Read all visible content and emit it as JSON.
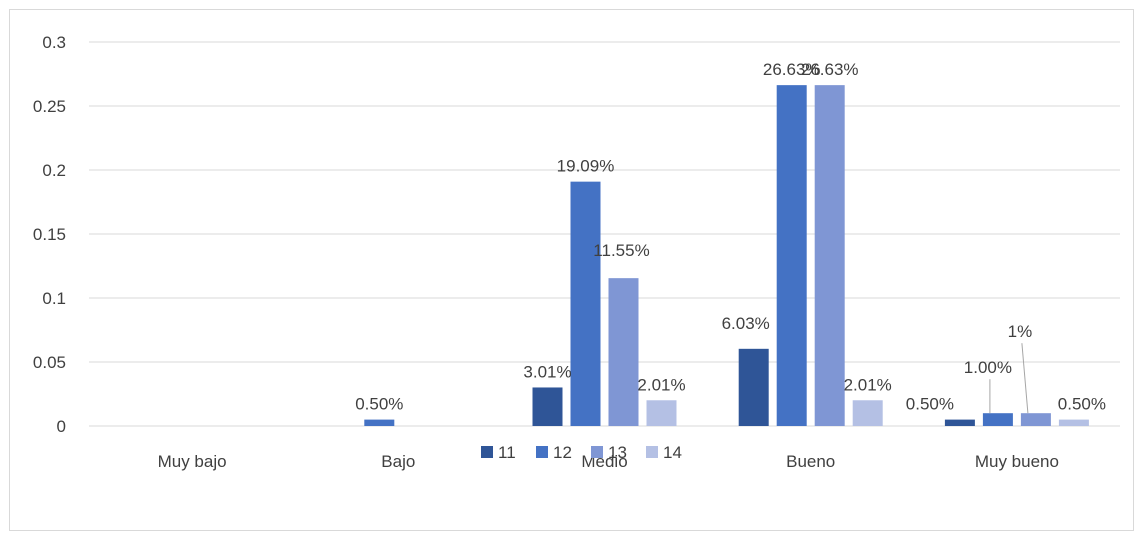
{
  "chart_data": {
    "type": "bar",
    "categories": [
      "Muy bajo",
      "Bajo",
      "Medio",
      "Bueno",
      "Muy bueno"
    ],
    "series": [
      {
        "name": "11",
        "color": "#2f5597",
        "values": [
          null,
          null,
          0.0301,
          0.0603,
          0.005
        ],
        "labels": [
          "",
          "",
          "3.01%",
          "6.03%",
          "0.50%"
        ]
      },
      {
        "name": "12",
        "color": "#4472c4",
        "values": [
          null,
          0.005,
          0.1909,
          0.2663,
          0.01
        ],
        "labels": [
          "",
          "0.50%",
          "19.09%",
          "26.63%",
          "1.00%"
        ]
      },
      {
        "name": "13",
        "color": "#7f96d4",
        "values": [
          null,
          null,
          0.1155,
          0.2663,
          0.01
        ],
        "labels": [
          "",
          "",
          "11.55%",
          "26.63%",
          "1%"
        ]
      },
      {
        "name": "14",
        "color": "#b4c0e4",
        "values": [
          null,
          null,
          0.0201,
          0.0201,
          0.005
        ],
        "labels": [
          "",
          "",
          "2.01%",
          "2.01%",
          "0.50%"
        ]
      }
    ],
    "yticks": [
      "0",
      "0.05",
      "0.1",
      "0.15",
      "0.2",
      "0.25",
      "0.3"
    ],
    "ylim": [
      0,
      0.3
    ],
    "grid": true,
    "legend_position": "bottom"
  }
}
